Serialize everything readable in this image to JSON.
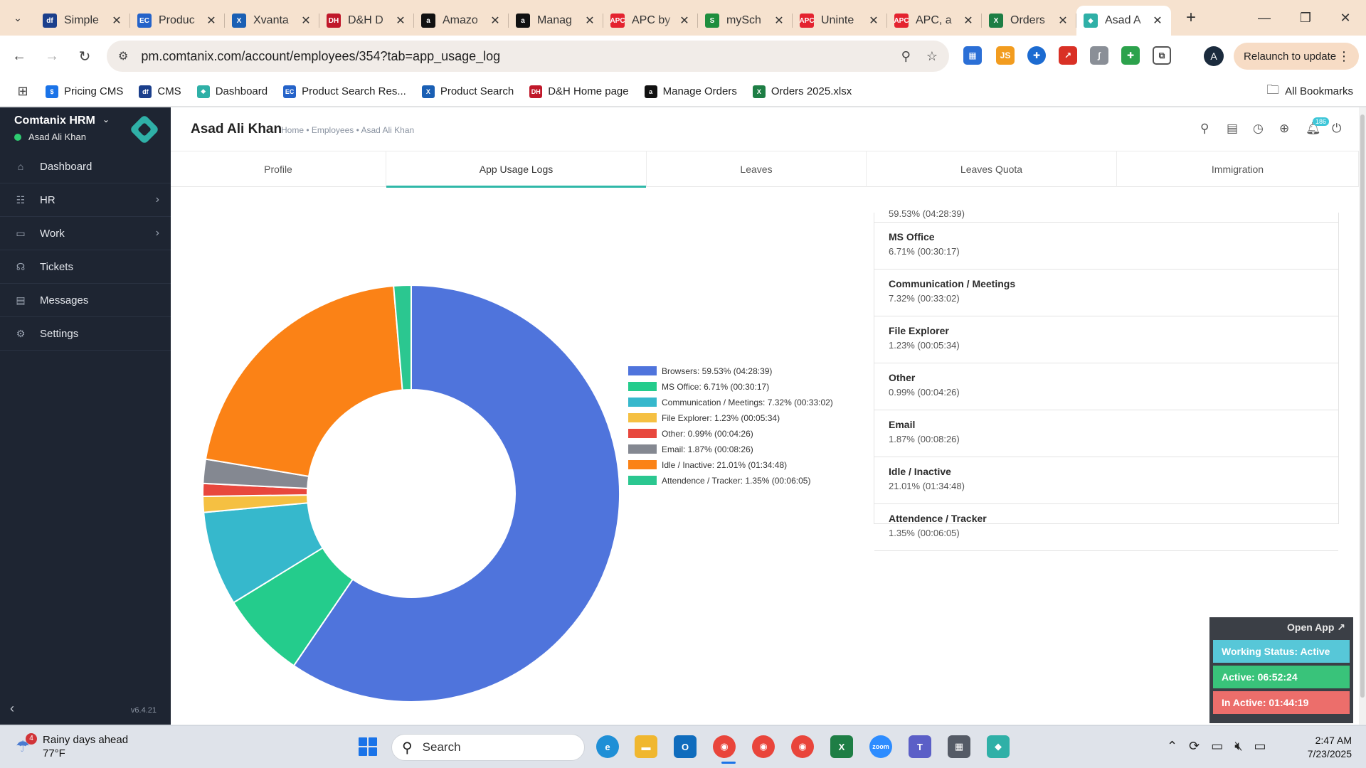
{
  "browser": {
    "tabs": [
      {
        "title": "Simple",
        "icon_color": "#1b3f8c",
        "icon_text": "df"
      },
      {
        "title": "Produc",
        "icon_color": "#2563c9",
        "icon_text": "EC"
      },
      {
        "title": "Xvanta",
        "icon_color": "#1a5fb4",
        "icon_text": "X"
      },
      {
        "title": "D&H D",
        "icon_color": "#c0182a",
        "icon_text": "DH"
      },
      {
        "title": "Amazo",
        "icon_color": "#111111",
        "icon_text": "a"
      },
      {
        "title": "Manag",
        "icon_color": "#111111",
        "icon_text": "a"
      },
      {
        "title": "APC by",
        "icon_color": "#e4232f",
        "icon_text": "APC"
      },
      {
        "title": "mySch",
        "icon_color": "#1e8e3e",
        "icon_text": "S"
      },
      {
        "title": "Uninte",
        "icon_color": "#e4232f",
        "icon_text": "APC"
      },
      {
        "title": "APC, a",
        "icon_color": "#e4232f",
        "icon_text": "APC"
      },
      {
        "title": "Orders",
        "icon_color": "#1e7e45",
        "icon_text": "X"
      },
      {
        "title": "Asad A",
        "icon_color": "#2fb0a7",
        "icon_text": "◆"
      }
    ],
    "url": "pm.comtanix.com/account/employees/354?tab=app_usage_log",
    "relaunch_label": "Relaunch to update",
    "profile_initial": "A",
    "bookmarks": [
      {
        "label": "Pricing CMS",
        "icon_color": "#1a73e8",
        "icon_text": "$"
      },
      {
        "label": "CMS",
        "icon_color": "#1b3f8c",
        "icon_text": "df"
      },
      {
        "label": "Dashboard",
        "icon_color": "#2fb0a7",
        "icon_text": "◆"
      },
      {
        "label": "Product Search Res...",
        "icon_color": "#2563c9",
        "icon_text": "EC"
      },
      {
        "label": "Product Search",
        "icon_color": "#1a5fb4",
        "icon_text": "X"
      },
      {
        "label": "D&H Home page",
        "icon_color": "#c0182a",
        "icon_text": "DH"
      },
      {
        "label": "Manage Orders",
        "icon_color": "#111111",
        "icon_text": "a"
      },
      {
        "label": "Orders 2025.xlsx",
        "icon_color": "#1e7e45",
        "icon_text": "X"
      }
    ],
    "all_bookmarks_label": "All Bookmarks"
  },
  "sidebar": {
    "brand": "Comtanix HRM",
    "user": "Asad Ali Khan",
    "items": [
      {
        "label": "Dashboard",
        "icon": "⌂",
        "chevron": false
      },
      {
        "label": "HR",
        "icon": "☷",
        "chevron": true
      },
      {
        "label": "Work",
        "icon": "▭",
        "chevron": true
      },
      {
        "label": "Tickets",
        "icon": "☊",
        "chevron": false
      },
      {
        "label": "Messages",
        "icon": "▤",
        "chevron": false
      },
      {
        "label": "Settings",
        "icon": "⚙",
        "chevron": false
      }
    ],
    "version": "v6.4.21"
  },
  "header": {
    "title": "Asad Ali Khan",
    "breadcrumb": "Home • Employees • Asad Ali Khan",
    "notification_count": "186"
  },
  "tabs": [
    {
      "label": "Profile",
      "active": false
    },
    {
      "label": "App Usage Logs",
      "active": true
    },
    {
      "label": "Leaves",
      "active": false
    },
    {
      "label": "Leaves Quota",
      "active": false
    },
    {
      "label": "Immigration",
      "active": false
    }
  ],
  "usage_list": [
    {
      "name": "",
      "value": "59.53% (04:28:39)"
    },
    {
      "name": "MS Office",
      "value": "6.71% (00:30:17)"
    },
    {
      "name": "Communication / Meetings",
      "value": "7.32% (00:33:02)"
    },
    {
      "name": "File Explorer",
      "value": "1.23% (00:05:34)"
    },
    {
      "name": "Other",
      "value": "0.99% (00:04:26)"
    },
    {
      "name": "Email",
      "value": "1.87% (00:08:26)"
    },
    {
      "name": "Idle / Inactive",
      "value": "21.01% (01:34:48)"
    },
    {
      "name": "Attendence / Tracker",
      "value": "1.35% (00:06:05)"
    }
  ],
  "chart_data": {
    "type": "pie",
    "title": "",
    "legend_position": "right",
    "slices": [
      {
        "label": "Browsers: 59.53% (04:28:39)",
        "value": 59.53,
        "color": "#4f74dc"
      },
      {
        "label": "MS Office: 6.71% (00:30:17)",
        "value": 6.71,
        "color": "#24cc8c"
      },
      {
        "label": "Communication / Meetings: 7.32% (00:33:02)",
        "value": 7.32,
        "color": "#36b8cc"
      },
      {
        "label": "File Explorer: 1.23% (00:05:34)",
        "value": 1.23,
        "color": "#f5c042"
      },
      {
        "label": "Other: 0.99% (00:04:26)",
        "value": 0.99,
        "color": "#e8473d"
      },
      {
        "label": "Email: 1.87% (00:08:26)",
        "value": 1.87,
        "color": "#848891"
      },
      {
        "label": "Idle / Inactive: 21.01% (01:34:48)",
        "value": 21.01,
        "color": "#fb8216"
      },
      {
        "label": "Attendence / Tracker: 1.35% (00:06:05)",
        "value": 1.35,
        "color": "#2bc790"
      }
    ]
  },
  "tracker": {
    "open_app": "Open App ↗",
    "status": "Working Status: Active",
    "active": "Active: 06:52:24",
    "inactive": "In Active: 01:44:19",
    "status_color": "#57c7d8",
    "active_color": "#39c37a",
    "inactive_color": "#ec6e6b"
  },
  "taskbar": {
    "weather_text": "Rainy days ahead",
    "temperature": "77°F",
    "weather_badge": "4",
    "search_placeholder": "Search",
    "time": "2:47 AM",
    "date": "7/23/2025"
  }
}
